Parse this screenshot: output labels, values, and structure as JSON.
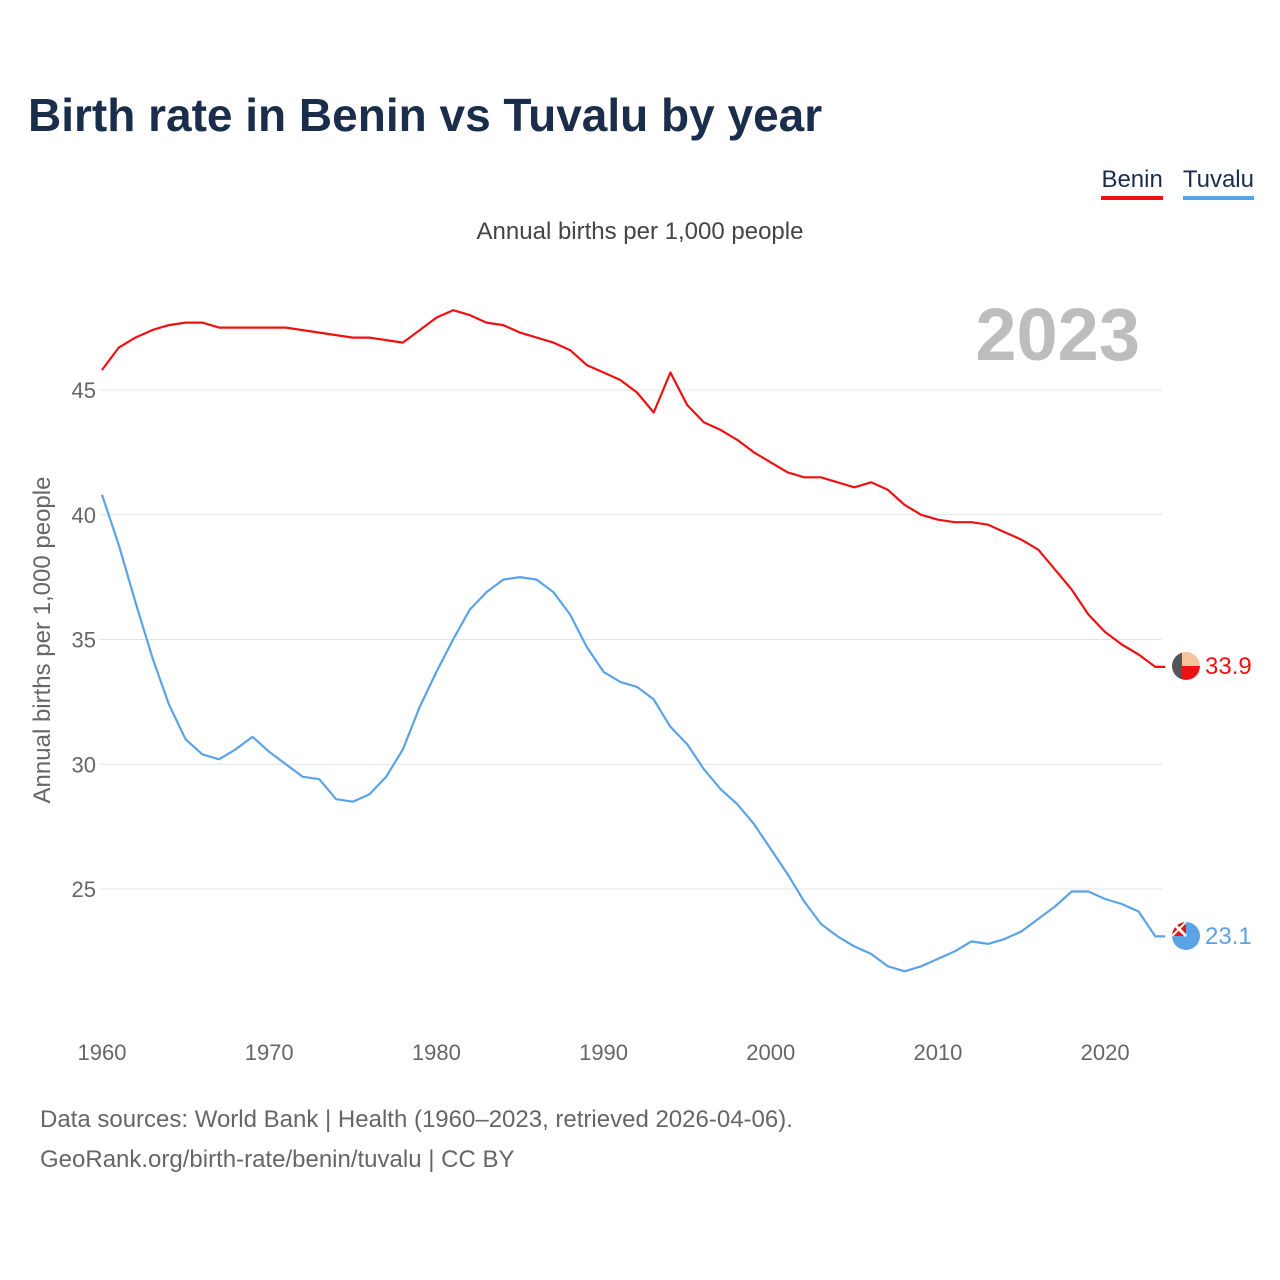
{
  "header": {
    "title": "Birth rate in Benin vs Tuvalu by year"
  },
  "legend": [
    {
      "name": "Benin",
      "color": "#ee1111"
    },
    {
      "name": "Tuvalu",
      "color": "#5ca3e6"
    }
  ],
  "footer": {
    "source": "Data sources: World Bank | Health (1960–2023, retrieved 2026-04-06).",
    "link": "GeoRank.org/birth-rate/benin/tuvalu | CC BY"
  },
  "chart_data": {
    "type": "line",
    "title": "Annual births per 1,000 people",
    "xlabel": "",
    "ylabel": "Annual births per 1,000 people",
    "year_label": "2023",
    "xlim": [
      1960,
      2023
    ],
    "ylim": [
      20.5,
      50
    ],
    "yticks": [
      25,
      30,
      35,
      40,
      45
    ],
    "xticks": [
      1960,
      1970,
      1980,
      1990,
      2000,
      2010,
      2020
    ],
    "grid": true,
    "legend_position": "top-right",
    "x": [
      1960,
      1961,
      1962,
      1963,
      1964,
      1965,
      1966,
      1967,
      1968,
      1969,
      1970,
      1971,
      1972,
      1973,
      1974,
      1975,
      1976,
      1977,
      1978,
      1979,
      1980,
      1981,
      1982,
      1983,
      1984,
      1985,
      1986,
      1987,
      1988,
      1989,
      1990,
      1991,
      1992,
      1993,
      1994,
      1995,
      1996,
      1997,
      1998,
      1999,
      2000,
      2001,
      2002,
      2003,
      2004,
      2005,
      2006,
      2007,
      2008,
      2009,
      2010,
      2011,
      2012,
      2013,
      2014,
      2015,
      2016,
      2017,
      2018,
      2019,
      2020,
      2021,
      2022,
      2023
    ],
    "series": [
      {
        "name": "Benin",
        "color": "#ee1111",
        "end_label": "33.9",
        "values": [
          45.8,
          46.7,
          47.1,
          47.4,
          47.6,
          47.7,
          47.7,
          47.5,
          47.5,
          47.5,
          47.5,
          47.5,
          47.4,
          47.3,
          47.2,
          47.1,
          47.1,
          47.0,
          46.9,
          47.4,
          47.9,
          48.2,
          48.0,
          47.7,
          47.6,
          47.3,
          47.1,
          46.9,
          46.6,
          46.0,
          45.7,
          45.4,
          44.9,
          44.1,
          45.7,
          44.4,
          43.7,
          43.4,
          43.0,
          42.5,
          42.1,
          41.7,
          41.5,
          41.5,
          41.3,
          41.1,
          41.3,
          41.0,
          40.4,
          40.0,
          39.8,
          39.7,
          39.7,
          39.6,
          39.3,
          39.0,
          38.6,
          37.8,
          37.0,
          36.0,
          35.3,
          34.8,
          34.4,
          33.9
        ]
      },
      {
        "name": "Tuvalu",
        "color": "#5ca3e6",
        "end_label": "23.1",
        "values": [
          40.8,
          38.8,
          36.5,
          34.3,
          32.4,
          31.0,
          30.4,
          30.2,
          30.6,
          31.1,
          30.5,
          30.0,
          29.5,
          29.4,
          28.6,
          28.5,
          28.8,
          29.5,
          30.6,
          32.3,
          33.7,
          35.0,
          36.2,
          36.9,
          37.4,
          37.5,
          37.4,
          36.9,
          36.0,
          34.7,
          33.7,
          33.3,
          33.1,
          32.6,
          31.5,
          30.8,
          29.8,
          29.0,
          28.4,
          27.6,
          26.6,
          25.6,
          24.5,
          23.6,
          23.1,
          22.7,
          22.4,
          21.9,
          21.7,
          21.9,
          22.2,
          22.5,
          22.9,
          22.8,
          23.0,
          23.3,
          23.8,
          24.3,
          24.9,
          24.9,
          24.6,
          24.4,
          24.1,
          23.1
        ]
      }
    ]
  }
}
